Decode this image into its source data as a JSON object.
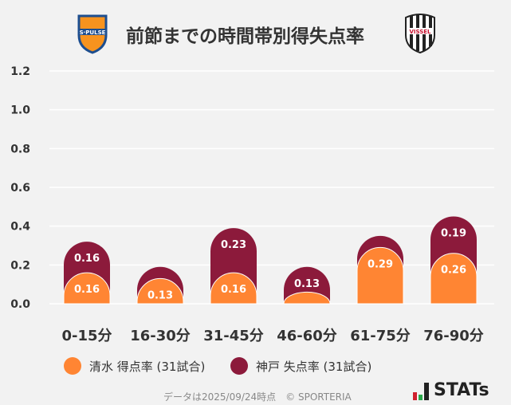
{
  "title": "前節までの時間帯別得失点率",
  "logos": {
    "home": "S-PULSE",
    "away": "VISSEL"
  },
  "colors": {
    "shimizu": "#ff8533",
    "kobe": "#8c1a3b",
    "grid": "#ffffff",
    "background": "#f2f2f2"
  },
  "chart_data": {
    "type": "bar",
    "stacked": true,
    "categories": [
      "0-15分",
      "16-30分",
      "31-45分",
      "46-60分",
      "61-75分",
      "76-90分"
    ],
    "series": [
      {
        "name": "清水 得点率 (31試合)",
        "values": [
          0.16,
          0.13,
          0.16,
          0.06,
          0.29,
          0.26
        ],
        "labels": [
          "0.16",
          "0.13",
          "0.16",
          "",
          "0.29",
          "0.26"
        ]
      },
      {
        "name": "神戸 失点率 (31試合)",
        "values": [
          0.16,
          0.06,
          0.23,
          0.13,
          0.06,
          0.19
        ],
        "labels": [
          "0.16",
          "",
          "0.23",
          "0.13",
          "",
          "0.19"
        ]
      }
    ],
    "yticks": [
      "0.0",
      "0.2",
      "0.4",
      "0.6",
      "0.8",
      "1.0",
      "1.2"
    ],
    "ylim": [
      0,
      1.2
    ],
    "grid": true,
    "legend": "bottom"
  },
  "footer": "データは2025/09/24時点　© SPORTERIA",
  "brand": "STATs"
}
